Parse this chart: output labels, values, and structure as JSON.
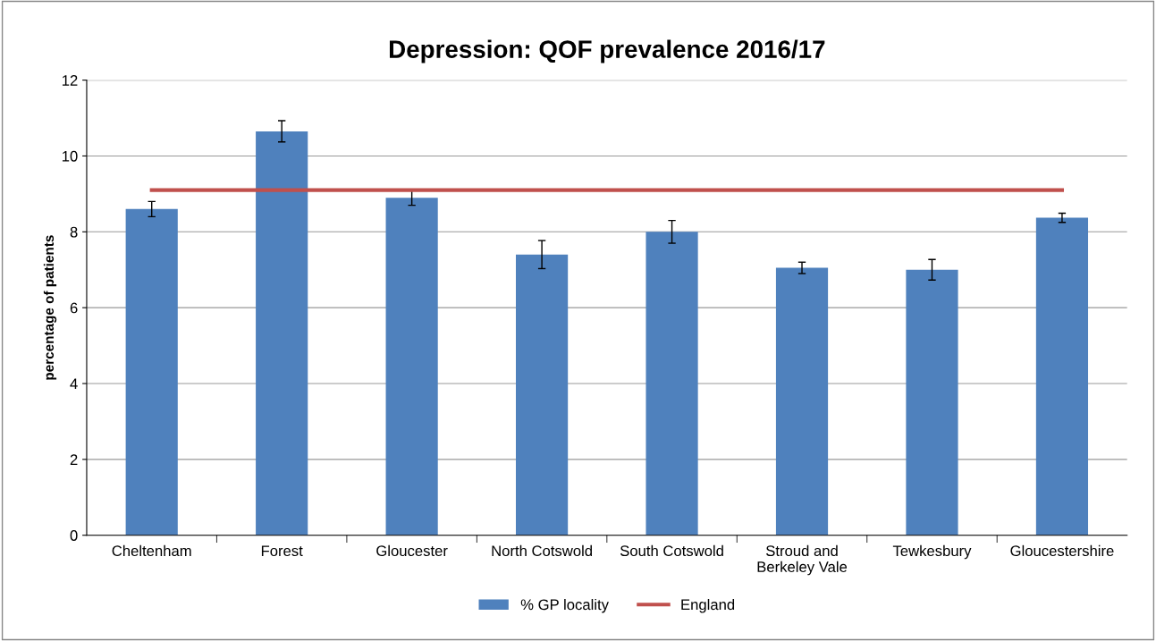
{
  "chart_data": {
    "type": "bar",
    "title": "Depression: QOF prevalence 2016/17",
    "ylabel": "percentage of patients",
    "categories": [
      "Cheltenham",
      "Forest",
      "Gloucester",
      "North Cotswold",
      "South Cotswold",
      "Stroud and\nBerkeley Vale",
      "Tewkesbury",
      "Gloucestershire"
    ],
    "series": [
      {
        "name": "% GP locality",
        "color": "#4f81bd",
        "values": [
          8.6,
          10.65,
          8.9,
          7.4,
          8.0,
          7.05,
          7.0,
          8.37
        ],
        "errors": [
          0.2,
          0.28,
          0.2,
          0.37,
          0.3,
          0.15,
          0.27,
          0.12
        ]
      },
      {
        "name": "England",
        "type": "line",
        "color": "#c0504d",
        "values": [
          9.1,
          9.1,
          9.1,
          9.1,
          9.1,
          9.1,
          9.1,
          9.1
        ]
      }
    ],
    "ylim": [
      0,
      12
    ],
    "yticks": [
      0,
      2,
      4,
      6,
      8,
      10,
      12
    ],
    "grid": "y",
    "legend": "bottom",
    "marker": "none"
  }
}
